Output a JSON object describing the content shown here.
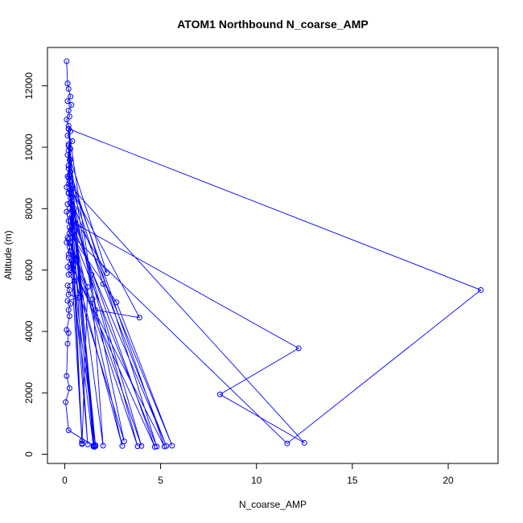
{
  "chart_data": {
    "type": "line",
    "title": "ATOM1 Northbound N_coarse_AMP",
    "xlabel": "N_coarse_AMP",
    "ylabel": "Altitude (m)",
    "xlim": [
      -0.9,
      22.6
    ],
    "ylim": [
      -300,
      13250
    ],
    "xticks": [
      0,
      5,
      10,
      15,
      20
    ],
    "xtick_labels": [
      "0",
      "5",
      "10",
      "15",
      "20"
    ],
    "yticks": [
      0,
      2000,
      4000,
      6000,
      8000,
      10000,
      12000
    ],
    "ytick_labels": [
      "0",
      "2000",
      "4000",
      "6000",
      "8000",
      "10000",
      "12000"
    ],
    "grid": false,
    "colors": {
      "series": "#0000ff",
      "axis": "#000000",
      "background": "#ffffff"
    },
    "series": [
      {
        "style": "line+open-circle-markers",
        "points": [
          [
            0.1,
            12800
          ],
          [
            0.15,
            12080
          ],
          [
            0.2,
            11900
          ],
          [
            0.3,
            11650
          ],
          [
            0.15,
            11500
          ],
          [
            0.35,
            11380
          ],
          [
            0.2,
            11200
          ],
          [
            0.25,
            11000
          ],
          [
            0.1,
            10900
          ],
          [
            0.2,
            10700
          ],
          [
            0.3,
            10520
          ],
          [
            0.15,
            10380
          ],
          [
            0.4,
            10200
          ],
          [
            0.2,
            10050
          ],
          [
            0.3,
            9950
          ],
          [
            0.15,
            9750
          ],
          [
            0.25,
            9580
          ],
          [
            0.2,
            9400
          ],
          [
            0.3,
            9200
          ],
          [
            0.15,
            9050
          ],
          [
            0.25,
            8900
          ],
          [
            0.1,
            8700
          ],
          [
            0.2,
            8520
          ],
          [
            0.3,
            8350
          ],
          [
            0.15,
            8150
          ],
          [
            0.5,
            8000
          ],
          [
            0.1,
            7900
          ],
          [
            0.2,
            7600
          ],
          [
            0.3,
            7300
          ],
          [
            0.15,
            7050
          ],
          [
            0.1,
            6900
          ],
          [
            0.25,
            6750
          ],
          [
            0.2,
            6500
          ],
          [
            0.6,
            6300
          ],
          [
            0.15,
            6100
          ],
          [
            0.3,
            6000
          ],
          [
            0.2,
            5850
          ],
          [
            0.5,
            5650
          ],
          [
            0.15,
            5500
          ],
          [
            0.25,
            5350
          ],
          [
            0.2,
            5200
          ],
          [
            0.7,
            5100
          ],
          [
            0.15,
            5000
          ],
          [
            0.3,
            4900
          ],
          [
            0.2,
            4700
          ],
          [
            0.25,
            4500
          ],
          [
            0.1,
            4050
          ],
          [
            0.2,
            3950
          ],
          [
            0.15,
            3600
          ],
          [
            0.1,
            2550
          ],
          [
            0.25,
            2150
          ],
          [
            0.05,
            1700
          ],
          [
            0.2,
            780
          ],
          [
            1.5,
            280
          ],
          [
            0.2,
            10600
          ],
          [
            0.3,
            9600
          ],
          [
            2.2,
            5900
          ],
          [
            0.25,
            8000
          ],
          [
            4.7,
            240
          ],
          [
            0.2,
            6400
          ],
          [
            3.1,
            420
          ],
          [
            0.2,
            9000
          ],
          [
            2.0,
            5550
          ],
          [
            5.3,
            270
          ],
          [
            0.3,
            7600
          ],
          [
            12.2,
            3450
          ],
          [
            8.1,
            1950
          ],
          [
            12.5,
            370
          ],
          [
            0.2,
            8800
          ],
          [
            3.9,
            4450
          ],
          [
            1.6,
            4700
          ],
          [
            0.2,
            10600
          ],
          [
            21.7,
            5350
          ],
          [
            11.6,
            350
          ],
          [
            0.25,
            7200
          ],
          [
            2.7,
            4950
          ],
          [
            5.6,
            280
          ],
          [
            0.2,
            8500
          ],
          [
            1.4,
            5850
          ],
          [
            4.0,
            270
          ],
          [
            0.3,
            6900
          ],
          [
            1.2,
            5450
          ],
          [
            0.9,
            330
          ],
          [
            0.2,
            9300
          ],
          [
            1.6,
            260
          ],
          [
            0.25,
            7800
          ],
          [
            3.0,
            270
          ],
          [
            0.3,
            6600
          ],
          [
            0.9,
            430
          ],
          [
            0.2,
            9900
          ],
          [
            1.45,
            5050
          ],
          [
            2.0,
            280
          ],
          [
            0.3,
            8200
          ],
          [
            3.8,
            260
          ],
          [
            0.2,
            7000
          ],
          [
            1.6,
            300
          ],
          [
            0.25,
            9100
          ],
          [
            5.2,
            250
          ],
          [
            0.3,
            6200
          ],
          [
            1.5,
            250
          ],
          [
            0.2,
            9400
          ],
          [
            4.8,
            250
          ],
          [
            0.25,
            7400
          ],
          [
            1.2,
            320
          ],
          [
            0.3,
            8600
          ],
          [
            0.9,
            360
          ],
          [
            0.2,
            10100
          ],
          [
            1.55,
            240
          ]
        ]
      }
    ]
  }
}
